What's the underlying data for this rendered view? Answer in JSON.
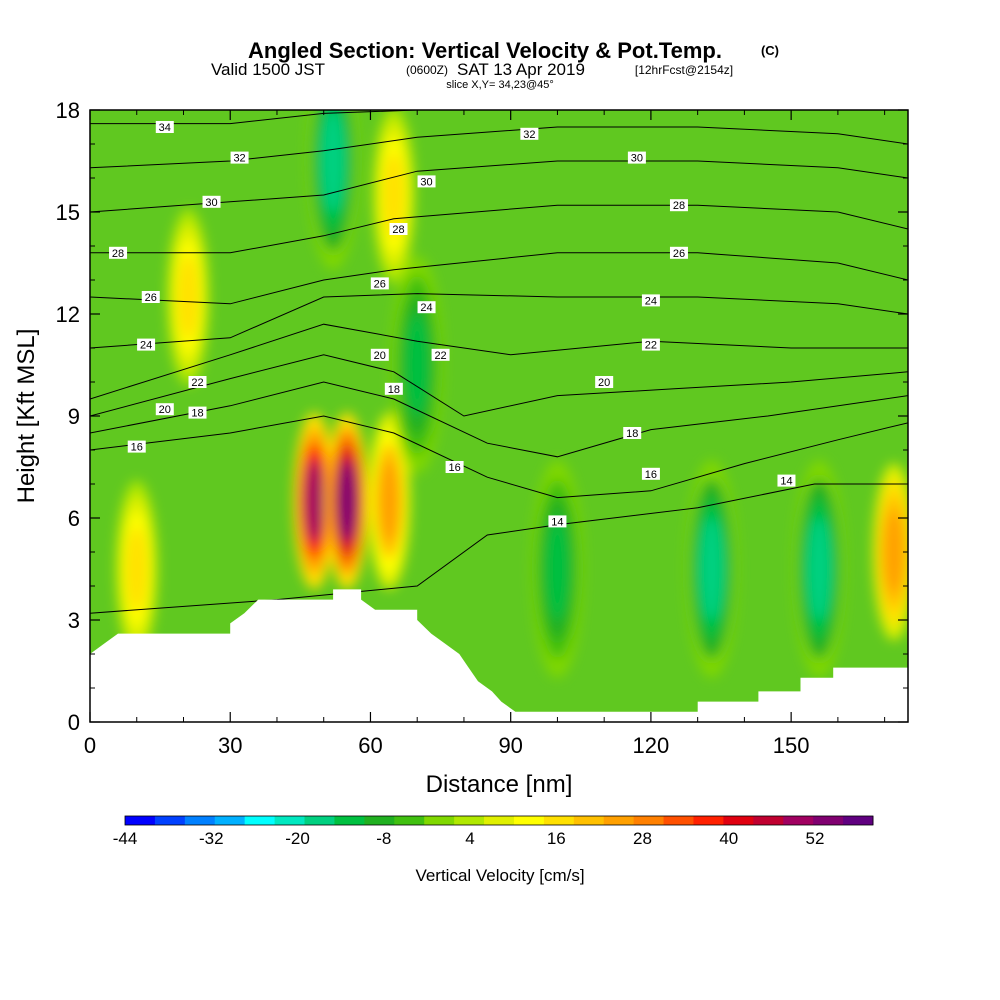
{
  "title": {
    "main": "Angled Section: Vertical Velocity & Pot.Temp.",
    "main_suffix": "(C)",
    "line2_a": "Valid 1500 JST",
    "line2_b": "(0600Z)",
    "line2_c": "SAT 13 Apr 2019",
    "line2_d": "[12hrFcst@2154z]",
    "line3": "slice X,Y= 34,23@45°"
  },
  "chart_data": {
    "type": "heatmap",
    "xlabel": "Distance [nm]",
    "ylabel": "Height [Kft MSL]",
    "xlim": [
      0,
      175
    ],
    "ylim": [
      0,
      18
    ],
    "x_ticks": [
      "0",
      "30",
      "60",
      "90",
      "120",
      "150"
    ],
    "y_ticks": [
      "0",
      "3",
      "6",
      "9",
      "12",
      "15",
      "18"
    ],
    "colorbar": {
      "label": "Vertical Velocity [cm/s]",
      "tick_labels": [
        "-44",
        "-32",
        "-20",
        "-8",
        "4",
        "16",
        "28",
        "40",
        "52"
      ],
      "colors": [
        "#0000ff",
        "#0040ff",
        "#0080ff",
        "#00b0ff",
        "#00ffff",
        "#00e8c0",
        "#00d080",
        "#00c040",
        "#20b020",
        "#40c010",
        "#80d800",
        "#b0e800",
        "#e0f000",
        "#ffff00",
        "#ffe000",
        "#ffc000",
        "#ffa000",
        "#ff8000",
        "#ff5000",
        "#ff2000",
        "#e00010",
        "#c00030",
        "#a00060",
        "#800070",
        "#600080"
      ]
    },
    "vertical_velocity_features": [
      {
        "type": "updraft",
        "x": 48,
        "z": 6.5,
        "peak": 52
      },
      {
        "type": "updraft",
        "x": 55,
        "z": 6.5,
        "peak": 58
      },
      {
        "type": "updraft",
        "x": 64,
        "z": 6.5,
        "peak": 24
      },
      {
        "type": "updraft",
        "x": 10,
        "z": 4.5,
        "peak": 14
      },
      {
        "type": "updraft",
        "x": 21,
        "z": 12.5,
        "peak": 14
      },
      {
        "type": "updraft",
        "x": 65,
        "z": 15.5,
        "peak": 14
      },
      {
        "type": "updraft",
        "x": 172,
        "z": 5,
        "peak": 26
      },
      {
        "type": "downdraft",
        "x": 52,
        "z": 16.5,
        "peak": -22
      },
      {
        "type": "downdraft",
        "x": 70,
        "z": 10.5,
        "peak": -18
      },
      {
        "type": "downdraft",
        "x": 100,
        "z": 4.5,
        "peak": -18
      },
      {
        "type": "downdraft",
        "x": 133,
        "z": 4.5,
        "peak": -22
      },
      {
        "type": "downdraft",
        "x": 156,
        "z": 4.5,
        "peak": -22
      }
    ],
    "terrain_profile": [
      [
        0,
        2
      ],
      [
        3,
        2.3
      ],
      [
        6,
        2.6
      ],
      [
        30,
        2.6
      ],
      [
        30,
        2.9
      ],
      [
        33,
        3.2
      ],
      [
        36,
        3.6
      ],
      [
        52,
        3.6
      ],
      [
        52,
        3.9
      ],
      [
        58,
        3.9
      ],
      [
        58,
        3.6
      ],
      [
        61,
        3.3
      ],
      [
        70,
        3.3
      ],
      [
        70,
        3.0
      ],
      [
        73,
        2.6
      ],
      [
        76,
        2.3
      ],
      [
        79,
        2.0
      ],
      [
        81,
        1.6
      ],
      [
        83,
        1.2
      ],
      [
        86,
        0.9
      ],
      [
        88,
        0.6
      ],
      [
        91,
        0.3
      ],
      [
        130,
        0.3
      ],
      [
        130,
        0.6
      ],
      [
        143,
        0.6
      ],
      [
        143,
        0.9
      ],
      [
        152,
        0.9
      ],
      [
        152,
        1.3
      ],
      [
        159,
        1.3
      ],
      [
        159,
        1.6
      ],
      [
        175,
        1.6
      ]
    ],
    "isentropes": [
      {
        "label": "14",
        "points": [
          [
            0,
            3.2
          ],
          [
            40,
            3.6
          ],
          [
            70,
            4.0
          ],
          [
            85,
            5.5
          ],
          [
            100,
            5.8
          ],
          [
            130,
            6.3
          ],
          [
            155,
            7.0
          ],
          [
            175,
            7.0
          ]
        ]
      },
      {
        "label": "16",
        "points": [
          [
            0,
            8.0
          ],
          [
            30,
            8.5
          ],
          [
            50,
            9.0
          ],
          [
            65,
            8.5
          ],
          [
            85,
            7.2
          ],
          [
            100,
            6.6
          ],
          [
            120,
            6.8
          ],
          [
            140,
            7.6
          ],
          [
            160,
            8.3
          ],
          [
            175,
            8.8
          ]
        ]
      },
      {
        "label": "18",
        "points": [
          [
            0,
            8.5
          ],
          [
            30,
            9.3
          ],
          [
            50,
            10.0
          ],
          [
            65,
            9.5
          ],
          [
            85,
            8.2
          ],
          [
            100,
            7.8
          ],
          [
            120,
            8.6
          ],
          [
            145,
            9.0
          ],
          [
            175,
            9.6
          ]
        ]
      },
      {
        "label": "20",
        "points": [
          [
            0,
            9.0
          ],
          [
            30,
            10.1
          ],
          [
            50,
            10.8
          ],
          [
            65,
            10.3
          ],
          [
            80,
            9.0
          ],
          [
            100,
            9.6
          ],
          [
            125,
            9.8
          ],
          [
            150,
            10.0
          ],
          [
            175,
            10.3
          ]
        ]
      },
      {
        "label": "22",
        "points": [
          [
            0,
            9.5
          ],
          [
            30,
            10.8
          ],
          [
            50,
            11.7
          ],
          [
            70,
            11.2
          ],
          [
            90,
            10.8
          ],
          [
            120,
            11.2
          ],
          [
            150,
            11.0
          ],
          [
            175,
            11.0
          ]
        ]
      },
      {
        "label": "24",
        "points": [
          [
            0,
            11.0
          ],
          [
            30,
            11.3
          ],
          [
            50,
            12.5
          ],
          [
            70,
            12.6
          ],
          [
            100,
            12.5
          ],
          [
            130,
            12.5
          ],
          [
            160,
            12.3
          ],
          [
            175,
            12.0
          ]
        ]
      },
      {
        "label": "26",
        "points": [
          [
            0,
            12.5
          ],
          [
            30,
            12.3
          ],
          [
            50,
            13.0
          ],
          [
            65,
            13.3
          ],
          [
            100,
            13.8
          ],
          [
            130,
            13.8
          ],
          [
            160,
            13.5
          ],
          [
            175,
            13.0
          ]
        ]
      },
      {
        "label": "28",
        "points": [
          [
            0,
            13.8
          ],
          [
            30,
            13.8
          ],
          [
            50,
            14.3
          ],
          [
            65,
            14.8
          ],
          [
            100,
            15.2
          ],
          [
            130,
            15.2
          ],
          [
            160,
            15.0
          ],
          [
            175,
            14.5
          ]
        ]
      },
      {
        "label": "30",
        "points": [
          [
            0,
            15.0
          ],
          [
            30,
            15.3
          ],
          [
            50,
            15.5
          ],
          [
            70,
            16.2
          ],
          [
            100,
            16.5
          ],
          [
            130,
            16.5
          ],
          [
            160,
            16.3
          ],
          [
            175,
            16.0
          ]
        ]
      },
      {
        "label": "32",
        "points": [
          [
            0,
            16.3
          ],
          [
            30,
            16.5
          ],
          [
            50,
            16.8
          ],
          [
            70,
            17.2
          ],
          [
            100,
            17.5
          ],
          [
            130,
            17.5
          ],
          [
            160,
            17.3
          ],
          [
            175,
            17.0
          ]
        ]
      },
      {
        "label": "34",
        "points": [
          [
            0,
            17.6
          ],
          [
            30,
            17.6
          ],
          [
            50,
            17.9
          ],
          [
            70,
            18.0
          ],
          [
            175,
            18.0
          ]
        ]
      }
    ],
    "isentrope_labels": [
      {
        "text": "34",
        "x": 16,
        "y": 17.5
      },
      {
        "text": "32",
        "x": 32,
        "y": 16.6
      },
      {
        "text": "30",
        "x": 26,
        "y": 15.3
      },
      {
        "text": "28",
        "x": 6,
        "y": 13.8
      },
      {
        "text": "26",
        "x": 13,
        "y": 12.5
      },
      {
        "text": "24",
        "x": 12,
        "y": 11.1
      },
      {
        "text": "22",
        "x": 23,
        "y": 10.0
      },
      {
        "text": "20",
        "x": 16,
        "y": 9.2
      },
      {
        "text": "18",
        "x": 23,
        "y": 9.1
      },
      {
        "text": "16",
        "x": 10,
        "y": 8.1
      },
      {
        "text": "30",
        "x": 72,
        "y": 15.9
      },
      {
        "text": "28",
        "x": 66,
        "y": 14.5
      },
      {
        "text": "26",
        "x": 62,
        "y": 12.9
      },
      {
        "text": "24",
        "x": 72,
        "y": 12.2
      },
      {
        "text": "22",
        "x": 75,
        "y": 10.8
      },
      {
        "text": "20",
        "x": 62,
        "y": 10.8
      },
      {
        "text": "18",
        "x": 65,
        "y": 9.8
      },
      {
        "text": "16",
        "x": 78,
        "y": 7.5
      },
      {
        "text": "14",
        "x": 100,
        "y": 5.9
      },
      {
        "text": "32",
        "x": 94,
        "y": 17.3
      },
      {
        "text": "30",
        "x": 117,
        "y": 16.6
      },
      {
        "text": "28",
        "x": 126,
        "y": 15.2
      },
      {
        "text": "26",
        "x": 126,
        "y": 13.8
      },
      {
        "text": "24",
        "x": 120,
        "y": 12.4
      },
      {
        "text": "22",
        "x": 120,
        "y": 11.1
      },
      {
        "text": "20",
        "x": 110,
        "y": 10.0
      },
      {
        "text": "18",
        "x": 116,
        "y": 8.5
      },
      {
        "text": "16",
        "x": 120,
        "y": 7.3
      },
      {
        "text": "14",
        "x": 149,
        "y": 7.1
      }
    ]
  }
}
